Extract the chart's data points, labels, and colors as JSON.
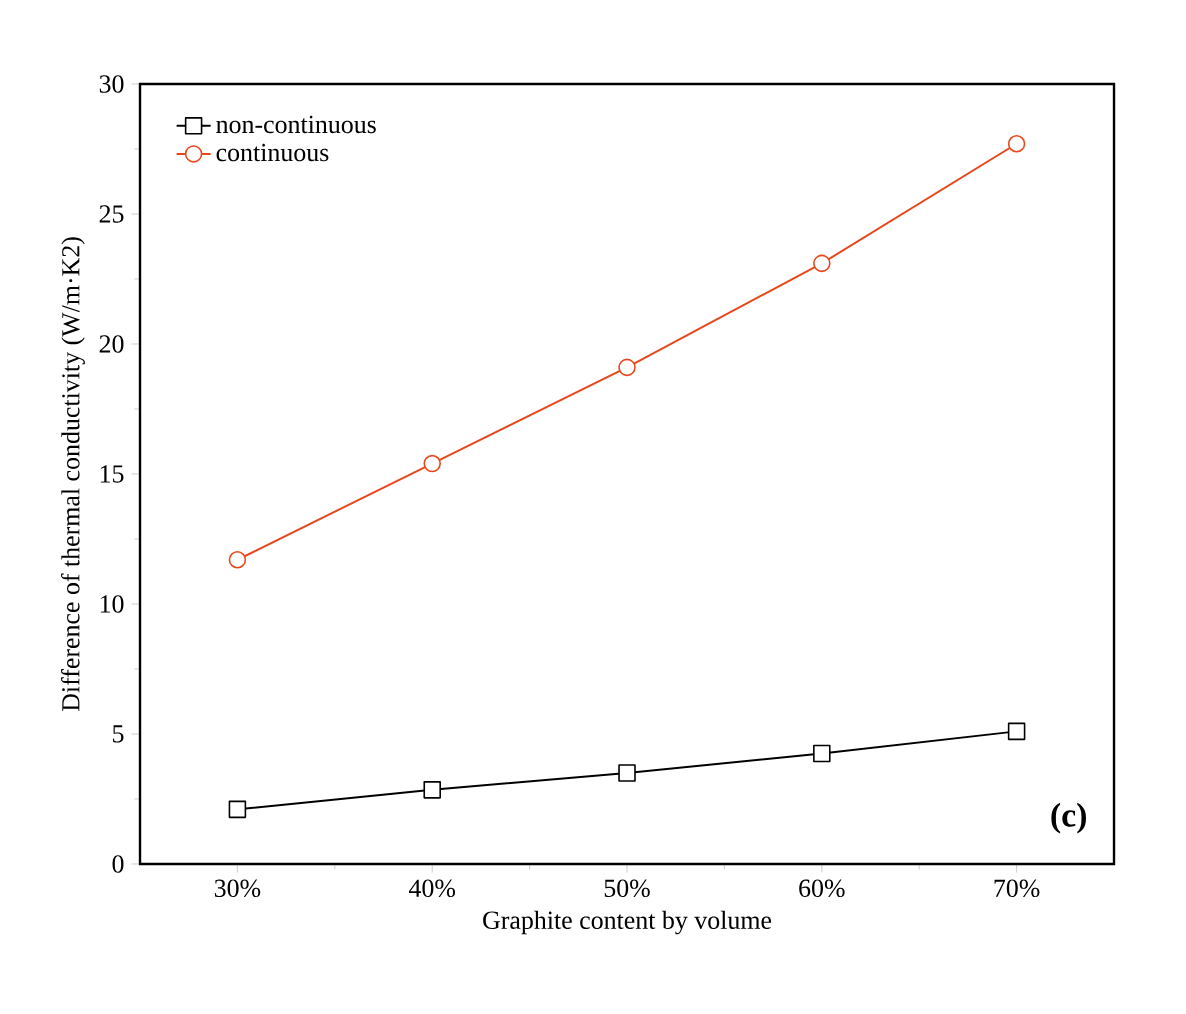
{
  "chart_data": {
    "type": "line",
    "xlabel": "Graphite content by volume",
    "ylabel": "Difference of thermal conductivity (W/m·K2)",
    "x": [
      30,
      40,
      50,
      60,
      70
    ],
    "xlim": [
      25,
      75
    ],
    "xticks": [
      {
        "value": 30,
        "label": "30%"
      },
      {
        "value": 40,
        "label": "40%"
      },
      {
        "value": 50,
        "label": "50%"
      },
      {
        "value": 60,
        "label": "60%"
      },
      {
        "value": 70,
        "label": "70%"
      }
    ],
    "ylim": [
      0,
      30
    ],
    "yticks": [
      0,
      5,
      10,
      15,
      20,
      25,
      30
    ],
    "series": [
      {
        "name": "non-continuous",
        "color": "#000000",
        "marker": "square",
        "values": [
          2.1,
          2.85,
          3.5,
          4.25,
          5.1
        ]
      },
      {
        "name": "continuous",
        "color": "#e8471c",
        "marker": "circle",
        "values": [
          11.7,
          15.4,
          19.1,
          23.1,
          27.7
        ]
      }
    ],
    "legend": "top left",
    "grid": false,
    "line_style": "solid",
    "annotations": [
      "(c)"
    ]
  }
}
